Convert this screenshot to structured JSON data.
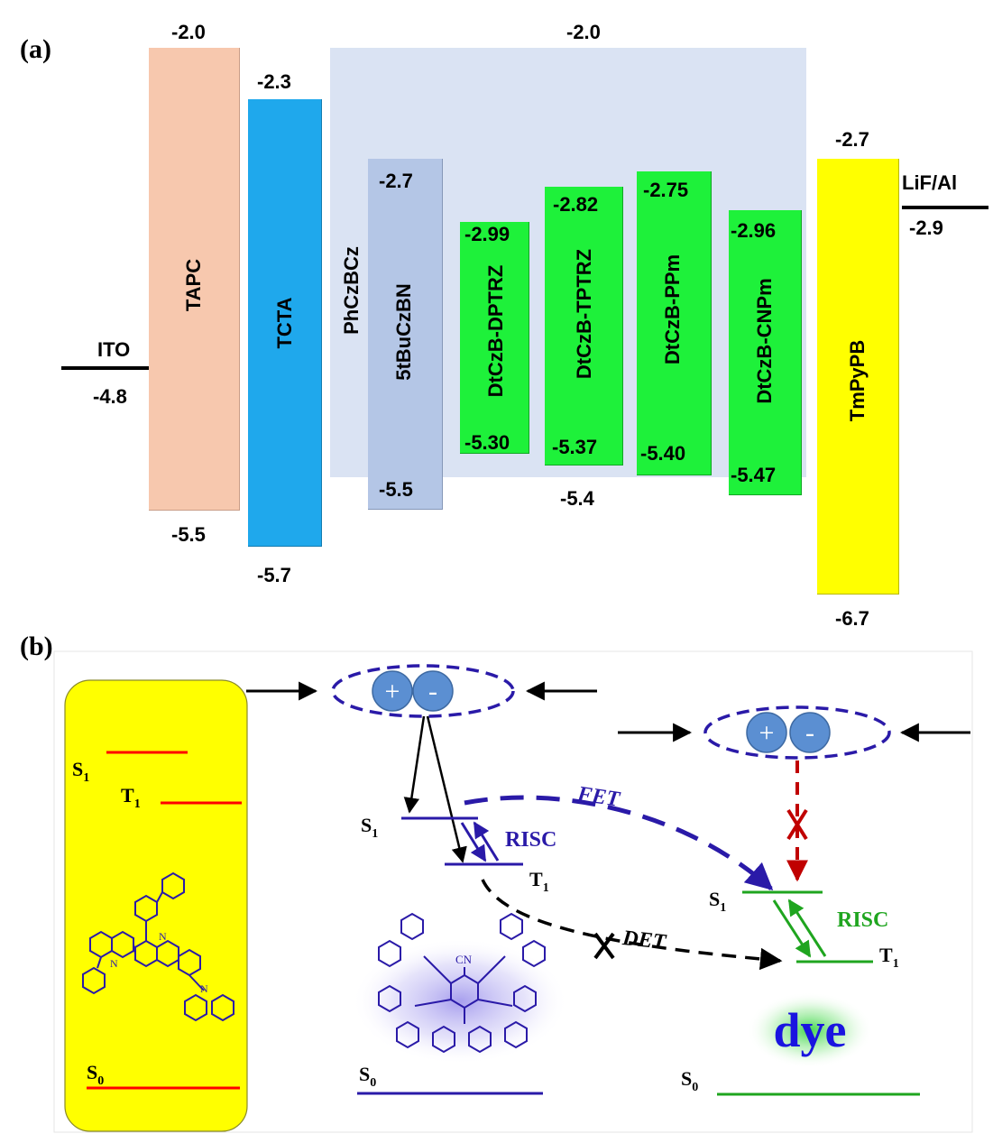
{
  "panel_a": {
    "label": "(a)",
    "host_top": "-2.0",
    "host_label": "PhCzBCz",
    "host_bottom": "-5.4",
    "ito": {
      "name": "ITO",
      "value": "-4.8"
    },
    "cathode": {
      "name": "LiF/Al",
      "value": "-2.9"
    },
    "layers": [
      {
        "name": "TAPC",
        "lumo": "-2.0",
        "homo": "-5.5",
        "color": "#f7c8ae"
      },
      {
        "name": "TCTA",
        "lumo": "-2.3",
        "homo": "-5.7",
        "color": "#1fa8ec"
      },
      {
        "name": "5tBuCzBN",
        "lumo": "-2.7",
        "homo": "-5.5",
        "color": "#b4c6e6"
      },
      {
        "name": "DtCzB-DPTRZ",
        "lumo": "-2.99",
        "homo": "-5.30",
        "color": "#1ef13a"
      },
      {
        "name": "DtCzB-TPTRZ",
        "lumo": "-2.82",
        "homo": "-5.37",
        "color": "#1ef13a"
      },
      {
        "name": "DtCzB-PPm",
        "lumo": "-2.75",
        "homo": "-5.40",
        "color": "#1ef13a"
      },
      {
        "name": "DtCzB-CNPm",
        "lumo": "-2.96",
        "homo": "-5.47",
        "color": "#1ef13a"
      },
      {
        "name": "TmPyPB",
        "lumo": "-2.7",
        "homo": "-6.7",
        "color": "#ffff00"
      }
    ]
  },
  "panel_b": {
    "label": "(b)",
    "host_levels": {
      "s1": "S",
      "s1_sub": "1",
      "t1": "T",
      "t1_sub": "1",
      "s0": "S",
      "s0_sub": "0"
    },
    "sens_levels": {
      "s1": "S",
      "s1_sub": "1",
      "t1": "T",
      "t1_sub": "1",
      "s0": "S",
      "s0_sub": "0"
    },
    "dye_levels": {
      "s1": "S",
      "s1_sub": "1",
      "t1": "T",
      "t1_sub": "1",
      "s0": "S",
      "s0_sub": "0"
    },
    "charge_plus": "+",
    "charge_minus": "-",
    "risc_sens": "RISC",
    "risc_dye": "RISC",
    "fet": "FET",
    "det": "DET",
    "dye_text": "dye",
    "cn_label": "CN",
    "colors": {
      "host": "#ff0000",
      "sensitizer": "#2a1aa8",
      "dye": "#1fa51f",
      "blocked": "#c00000"
    }
  }
}
